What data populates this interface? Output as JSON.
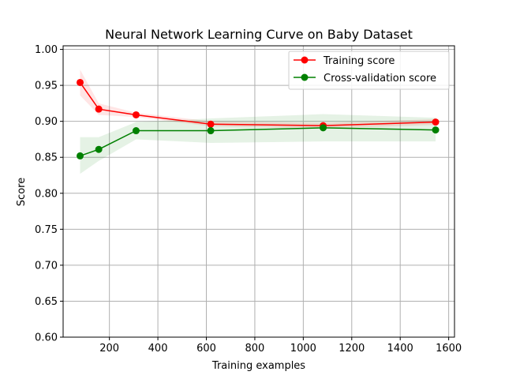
{
  "chart_data": {
    "type": "line",
    "title": "Neural Network Learning Curve on Baby Dataset",
    "xlabel": "Training examples",
    "ylabel": "Score",
    "xlim": [
      9,
      1624
    ],
    "ylim": [
      0.6,
      1.005
    ],
    "xticks": [
      200,
      400,
      600,
      800,
      1000,
      1200,
      1400,
      1600
    ],
    "yticks": [
      0.6,
      0.65,
      0.7,
      0.75,
      0.8,
      0.85,
      0.9,
      0.95,
      1.0
    ],
    "xtick_labels": [
      "200",
      "400",
      "600",
      "800",
      "1000",
      "1200",
      "1400",
      "1600"
    ],
    "ytick_labels": [
      "0.60",
      "0.65",
      "0.70",
      "0.75",
      "0.80",
      "0.85",
      "0.90",
      "0.95",
      "1.00"
    ],
    "grid": true,
    "legend_position": "top-right",
    "series": [
      {
        "name": "Training score",
        "color": "#ff0000",
        "fill_color": "#ff0000",
        "x": [
          79,
          156,
          310,
          618,
          1082,
          1546
        ],
        "values": [
          0.954,
          0.917,
          0.909,
          0.896,
          0.894,
          0.899
        ],
        "upper": [
          0.972,
          0.925,
          0.912,
          0.9,
          0.898,
          0.903
        ],
        "lower": [
          0.936,
          0.909,
          0.906,
          0.893,
          0.89,
          0.895
        ]
      },
      {
        "name": "Cross-validation score",
        "color": "#008000",
        "fill_color": "#008000",
        "x": [
          79,
          156,
          310,
          618,
          1082,
          1546
        ],
        "values": [
          0.852,
          0.861,
          0.887,
          0.887,
          0.891,
          0.888
        ],
        "upper": [
          0.878,
          0.878,
          0.899,
          0.904,
          0.91,
          0.905
        ],
        "lower": [
          0.827,
          0.845,
          0.875,
          0.87,
          0.872,
          0.872
        ]
      }
    ]
  }
}
